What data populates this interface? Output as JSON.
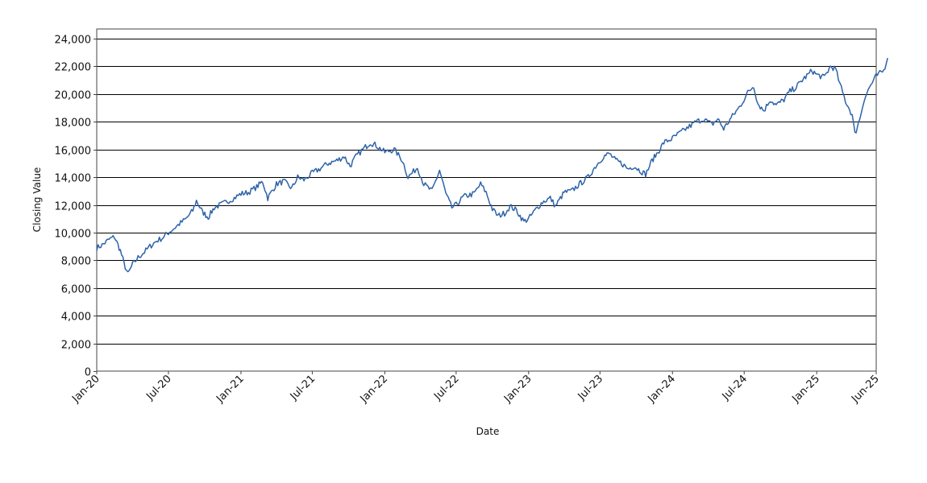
{
  "chart_data": {
    "type": "line",
    "title": "",
    "xlabel": "Date",
    "ylabel": "Closing Value",
    "ylim": [
      0,
      24000
    ],
    "yticks": [
      0,
      2000,
      4000,
      6000,
      8000,
      10000,
      12000,
      14000,
      16000,
      18000,
      20000,
      22000,
      24000
    ],
    "ytick_labels": [
      "0",
      "2,000",
      "4,000",
      "6,000",
      "8,000",
      "10,000",
      "12,000",
      "14,000",
      "16,000",
      "18,000",
      "20,000",
      "22,000",
      "24,000"
    ],
    "xlim": [
      "2020-01",
      "2025-06"
    ],
    "xticks": [
      "2020-01",
      "2020-07",
      "2021-01",
      "2021-07",
      "2022-01",
      "2022-07",
      "2023-01",
      "2023-07",
      "2024-01",
      "2024-07",
      "2025-01",
      "2025-06"
    ],
    "xtick_labels": [
      "Jan-20",
      "Jul-20",
      "Jan-21",
      "Jul-21",
      "Jan-22",
      "Jul-22",
      "Jan-23",
      "Jul-23",
      "Jan-24",
      "Jul-24",
      "Jan-25",
      "Jun-25"
    ],
    "grid": "horizontal",
    "legend": "none",
    "series": [
      {
        "color": "#2e63a8",
        "x": [
          "2020-01-01",
          "2020-01-15",
          "2020-02-01",
          "2020-02-15",
          "2020-03-01",
          "2020-03-10",
          "2020-03-20",
          "2020-04-01",
          "2020-04-15",
          "2020-05-01",
          "2020-05-15",
          "2020-06-01",
          "2020-06-15",
          "2020-07-01",
          "2020-07-15",
          "2020-08-01",
          "2020-08-15",
          "2020-09-01",
          "2020-09-10",
          "2020-09-25",
          "2020-10-10",
          "2020-10-25",
          "2020-11-10",
          "2020-12-01",
          "2020-12-15",
          "2021-01-01",
          "2021-01-20",
          "2021-02-10",
          "2021-02-25",
          "2021-03-10",
          "2021-04-01",
          "2021-04-20",
          "2021-05-10",
          "2021-05-25",
          "2021-06-10",
          "2021-07-01",
          "2021-07-20",
          "2021-08-10",
          "2021-09-01",
          "2021-09-20",
          "2021-10-05",
          "2021-10-20",
          "2021-11-10",
          "2021-11-25",
          "2021-12-10",
          "2022-01-01",
          "2022-01-25",
          "2022-02-15",
          "2022-03-01",
          "2022-03-25",
          "2022-04-10",
          "2022-05-01",
          "2022-05-20",
          "2022-06-05",
          "2022-06-20",
          "2022-07-01",
          "2022-07-20",
          "2022-08-15",
          "2022-09-01",
          "2022-09-15",
          "2022-10-01",
          "2022-10-15",
          "2022-11-01",
          "2022-11-15",
          "2022-12-01",
          "2022-12-20",
          "2023-01-01",
          "2023-01-20",
          "2023-02-05",
          "2023-02-25",
          "2023-03-10",
          "2023-04-01",
          "2023-04-20",
          "2023-05-10",
          "2023-06-01",
          "2023-06-20",
          "2023-07-10",
          "2023-07-25",
          "2023-08-10",
          "2023-08-25",
          "2023-09-10",
          "2023-09-25",
          "2023-10-10",
          "2023-10-25",
          "2023-11-10",
          "2023-11-25",
          "2023-12-10",
          "2024-01-01",
          "2024-01-20",
          "2024-02-10",
          "2024-03-01",
          "2024-03-20",
          "2024-04-10",
          "2024-04-25",
          "2024-05-10",
          "2024-06-01",
          "2024-06-20",
          "2024-07-10",
          "2024-07-25",
          "2024-08-05",
          "2024-08-20",
          "2024-09-05",
          "2024-09-20",
          "2024-10-10",
          "2024-10-25",
          "2024-11-10",
          "2024-11-25",
          "2024-12-10",
          "2024-12-20",
          "2025-01-01",
          "2025-01-20",
          "2025-02-05",
          "2025-02-18",
          "2025-03-01",
          "2025-03-15",
          "2025-04-01",
          "2025-04-08",
          "2025-04-20",
          "2025-05-01",
          "2025-05-15",
          "2025-06-01",
          "2025-06-20",
          "2025-06-30"
        ],
        "y": [
          8900,
          9100,
          9500,
          9700,
          8700,
          7800,
          7000,
          7700,
          8200,
          8600,
          9000,
          9400,
          9600,
          10000,
          10300,
          10700,
          11000,
          11600,
          12300,
          11500,
          11100,
          11800,
          12000,
          12300,
          12500,
          12800,
          12900,
          13300,
          13700,
          12500,
          13500,
          13700,
          13200,
          14000,
          13800,
          14300,
          14600,
          15000,
          15200,
          15500,
          14800,
          15500,
          16100,
          16500,
          16300,
          15800,
          16000,
          15200,
          14000,
          14700,
          13500,
          13000,
          14500,
          12800,
          11800,
          12000,
          12600,
          12800,
          13500,
          12900,
          11700,
          11200,
          11400,
          11900,
          11600,
          10800,
          11000,
          11700,
          12200,
          12500,
          11900,
          12900,
          13000,
          13500,
          14000,
          14800,
          15500,
          15700,
          15200,
          15000,
          14600,
          14800,
          14500,
          14200,
          15200,
          15800,
          16500,
          16800,
          17200,
          17600,
          18000,
          18200,
          17800,
          18200,
          17500,
          18400,
          19100,
          20100,
          20600,
          19300,
          18800,
          19600,
          19200,
          19600,
          20200,
          20500,
          21000,
          21400,
          21700,
          21400,
          21200,
          22000,
          21800,
          20700,
          19500,
          18500,
          17100,
          18200,
          19600,
          20500,
          21300,
          21700,
          22600
        ]
      }
    ]
  }
}
